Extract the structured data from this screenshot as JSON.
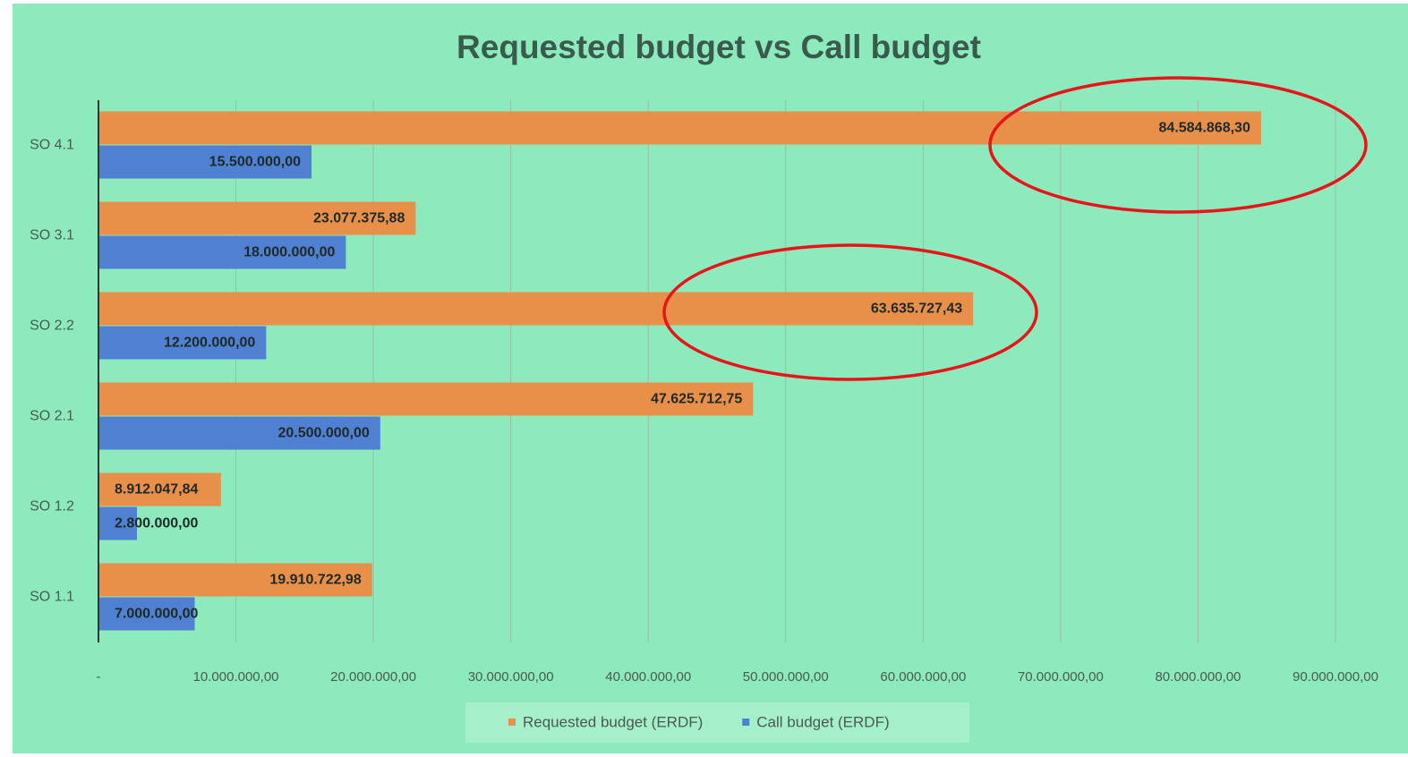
{
  "chart_data": {
    "type": "bar",
    "orientation": "horizontal",
    "title": "Requested budget vs Call budget",
    "categories": [
      "SO 1.1",
      "SO 1.2",
      "SO 2.1",
      "SO 2.2",
      "SO 3.1",
      "SO 4.1"
    ],
    "series": [
      {
        "name": "Requested budget (ERDF)",
        "color": "#e88f4a",
        "values": [
          19910722.98,
          8912047.84,
          47625712.75,
          63635727.43,
          23077375.88,
          84584868.3
        ],
        "value_labels": [
          "19.910.722,98",
          "8.912.047,84",
          "47.625.712,75",
          "63.635.727,43",
          "23.077.375,88",
          "84.584.868,30"
        ]
      },
      {
        "name": "Call budget (ERDF)",
        "color": "#4f80d2",
        "values": [
          7000000,
          2800000,
          20500000,
          12200000,
          18000000,
          15500000
        ],
        "value_labels": [
          "7.000.000,00",
          "2.800.000,00",
          "20.500.000,00",
          "12.200.000,00",
          "18.000.000,00",
          "15.500.000,00"
        ]
      }
    ],
    "xlim": [
      0,
      90000000
    ],
    "xticks": [
      {
        "value": 0,
        "label": "-"
      },
      {
        "value": 10000000,
        "label": "10.000.000,00"
      },
      {
        "value": 20000000,
        "label": "20.000.000,00"
      },
      {
        "value": 30000000,
        "label": "30.000.000,00"
      },
      {
        "value": 40000000,
        "label": "40.000.000,00"
      },
      {
        "value": 50000000,
        "label": "50.000.000,00"
      },
      {
        "value": 60000000,
        "label": "60.000.000,00"
      },
      {
        "value": 70000000,
        "label": "70.000.000,00"
      },
      {
        "value": 80000000,
        "label": "80.000.000,00"
      },
      {
        "value": 90000000,
        "label": "90.000.000,00"
      }
    ],
    "grid": true,
    "legend": "bottom"
  }
}
